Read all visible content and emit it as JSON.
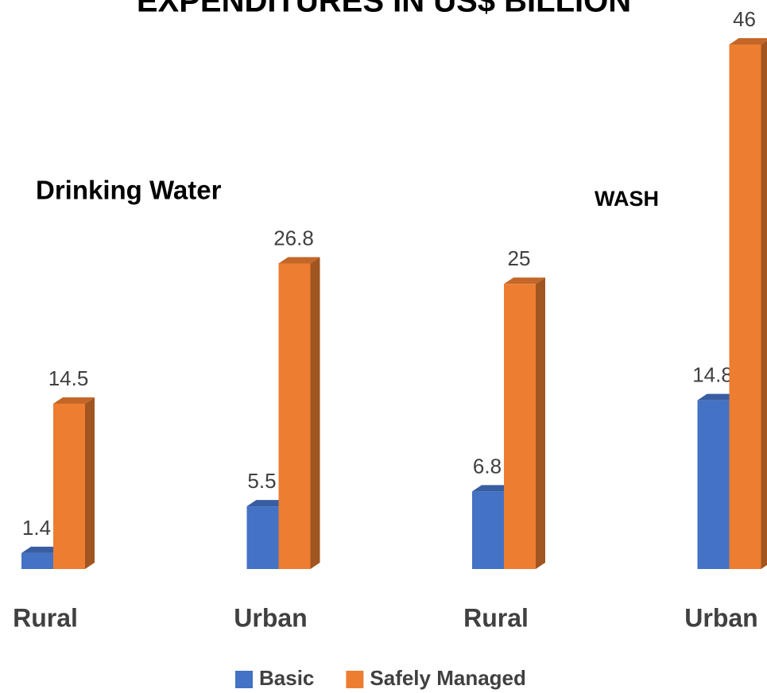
{
  "chart_data": {
    "type": "bar3d",
    "title": "EXPENDITURES IN US$ BILLION",
    "annotations": [
      "Drinking Water",
      "WASH"
    ],
    "categories": [
      "Rural",
      "Urban",
      "Rural",
      "Urban"
    ],
    "series": [
      {
        "name": "Basic",
        "color": "#4472c4",
        "values": [
          1.4,
          5.5,
          6.8,
          14.8
        ]
      },
      {
        "name": "Safely Managed",
        "color": "#ed7d31",
        "values": [
          14.5,
          26.8,
          25,
          46
        ]
      }
    ],
    "legend": "bottom"
  }
}
